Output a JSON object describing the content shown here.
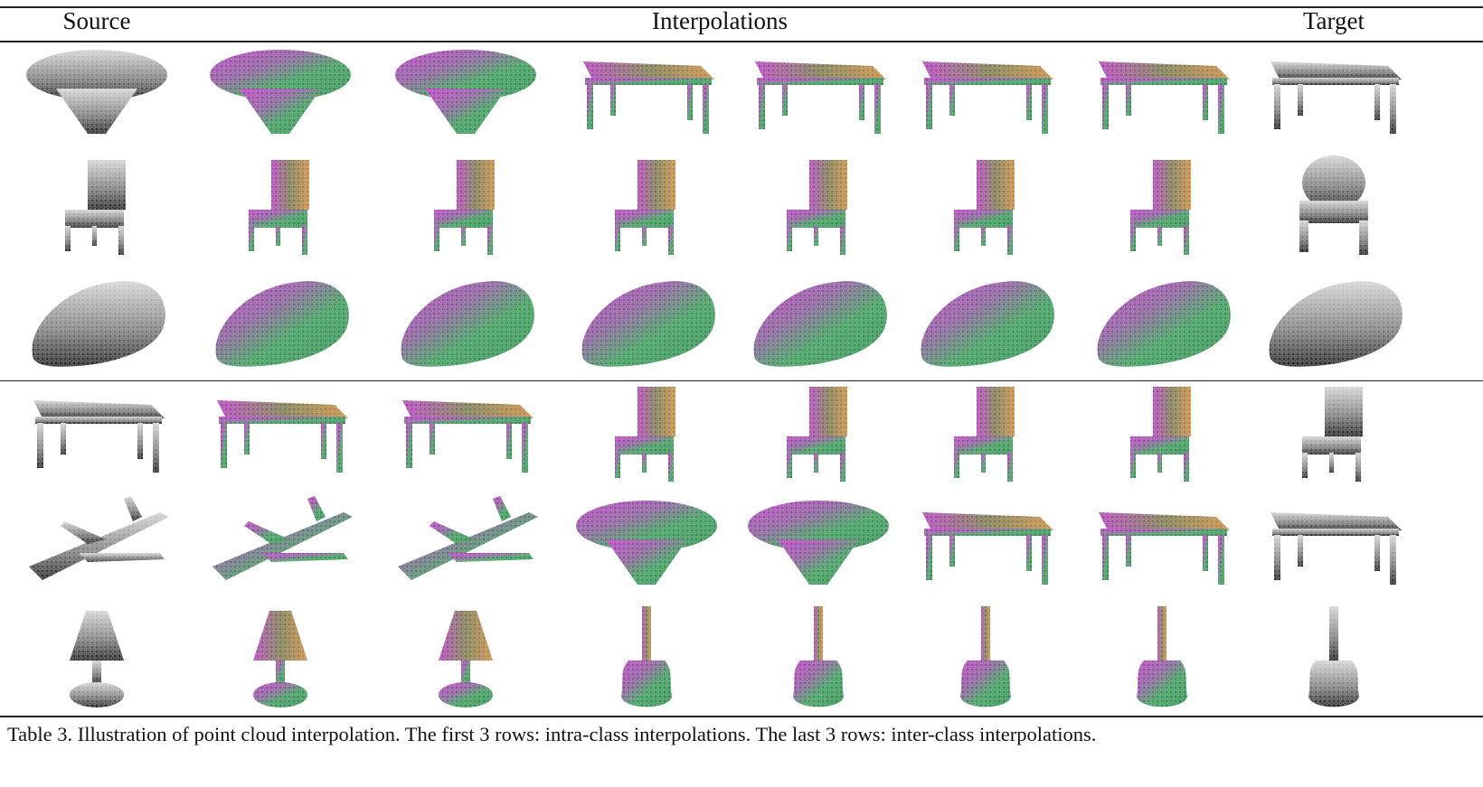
{
  "header": {
    "source": "Source",
    "interpolations": "Interpolations",
    "target": "Target"
  },
  "caption": "Table 3. Illustration of point cloud interpolation. The first 3 rows: intra-class interpolations. The last 3 rows: inter-class interpolations.",
  "colors": {
    "grey_light": "#d0d0d0",
    "grey_dark": "#2a2a2a",
    "interp_magenta": "#b040b8",
    "interp_green": "#40b040",
    "interp_orange": "#c88a40",
    "interp_teal": "#2a8a70"
  },
  "groups": [
    {
      "name": "intra-class",
      "rows": [
        {
          "cells": [
            "ufo-table",
            "ufo-table",
            "ufo-table",
            "table",
            "table",
            "table",
            "table",
            "table"
          ]
        },
        {
          "cells": [
            "chair",
            "chair",
            "chair",
            "chair",
            "chair",
            "chair",
            "chair",
            "armchair"
          ]
        },
        {
          "cells": [
            "car",
            "car",
            "car",
            "car",
            "car",
            "car",
            "car",
            "car"
          ]
        }
      ]
    },
    {
      "name": "inter-class",
      "rows": [
        {
          "cells": [
            "table",
            "table",
            "table",
            "chair",
            "chair",
            "chair",
            "chair",
            "chair"
          ]
        },
        {
          "cells": [
            "airplane",
            "airplane",
            "airplane",
            "ufo-table",
            "ufo-table",
            "table",
            "table",
            "table"
          ]
        },
        {
          "cells": [
            "lamp",
            "lamp",
            "lamp",
            "guitar",
            "guitar",
            "guitar",
            "guitar",
            "guitar"
          ]
        }
      ]
    }
  ]
}
